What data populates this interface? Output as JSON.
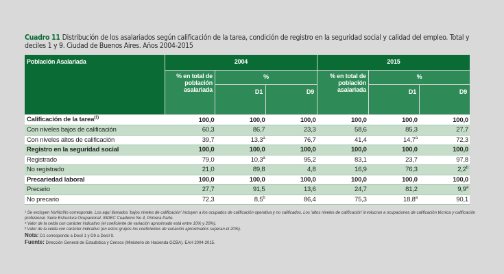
{
  "title": {
    "number": "Cuadro 11",
    "text": "Distribución de los asalariados según calificación de la tarea, condición de registro en la seguridad social y calidad del empleo. Total y deciles 1 y 9. Ciudad de Buenos Aires. Años 2004-2015"
  },
  "header": {
    "row_label": "Población Asalariada",
    "years": [
      "2004",
      "2015"
    ],
    "pct_total": "% en total de población asalariada",
    "pct": "%",
    "d1": "D1",
    "d9": "D9"
  },
  "rows": [
    {
      "label": "Calificación de la tarea",
      "sup": "(1)",
      "bold": true,
      "values": [
        "100,0",
        "100,0",
        "100,0",
        "100,0",
        "100,0",
        "100,0"
      ],
      "sups": [
        "",
        "",
        "",
        "",
        "",
        ""
      ]
    },
    {
      "label": "Con niveles bajos de calificación",
      "bold": false,
      "values": [
        "60,3",
        "86,7",
        "23,3",
        "58,6",
        "85,3",
        "27,7"
      ],
      "sups": [
        "",
        "",
        "",
        "",
        "",
        ""
      ]
    },
    {
      "label": "Con niveles altos de calificación",
      "bold": false,
      "values": [
        "39,7",
        "13,3",
        "76,7",
        "41,4",
        "14,7",
        "72,3"
      ],
      "sups": [
        "",
        "a",
        "",
        "",
        "a",
        ""
      ]
    },
    {
      "label": "Registro en la seguridad social",
      "bold": true,
      "values": [
        "100,0",
        "100,0",
        "100,0",
        "100,0",
        "100,0",
        "100,0"
      ],
      "sups": [
        "",
        "",
        "",
        "",
        "",
        ""
      ]
    },
    {
      "label": "Registrado",
      "bold": false,
      "values": [
        "79,0",
        "10,3",
        "95,2",
        "83,1",
        "23,7",
        "97,8"
      ],
      "sups": [
        "",
        "a",
        "",
        "",
        "",
        ""
      ]
    },
    {
      "label": "No registrado",
      "bold": false,
      "values": [
        "21,0",
        "89,8",
        "4,8",
        "16,9",
        "76,3",
        "2,2"
      ],
      "sups": [
        "",
        "",
        "",
        "",
        "",
        "b"
      ]
    },
    {
      "label": "Precariedad laboral",
      "bold": true,
      "values": [
        "100,0",
        "100,0",
        "100,0",
        "100,0",
        "100,0",
        "100,0"
      ],
      "sups": [
        "",
        "",
        "",
        "",
        "",
        ""
      ]
    },
    {
      "label": "Precario",
      "bold": false,
      "values": [
        "27,7",
        "91,5",
        "13,6",
        "24,7",
        "81,2",
        "9,9"
      ],
      "sups": [
        "",
        "",
        "",
        "",
        "",
        "a"
      ]
    },
    {
      "label": "No precario",
      "bold": false,
      "values": [
        "72,3",
        "8,5",
        "86,4",
        "75,3",
        "18,8",
        "90,1"
      ],
      "sups": [
        "",
        "b",
        "",
        "",
        "a",
        ""
      ]
    }
  ],
  "notes": {
    "n1": "¹ Se excluyen Ns/Nc/No corresponde. Los aquí llamados 'bajos niveles de calificación' incluyen a los ocupados de calificación operativa y no calificados. Los 'altos niveles de calificación' involucran a ocupaciones de calificación técnica y calificación profesional. Serie Estructura Ocupacional. INDEC Cuaderno No 4, Primera Parte.",
    "na": "ᵃ Valor de la celda con carácter indicativo (el coeficiente de variación aproximado está entre 10% y 20%).",
    "nb": "ᵇ Valor de la celda con carácter indicativo (en estos grupos los coeficientes de variación aproximados superan el 20%).",
    "nota_label": "Nota:",
    "nota": "D1 corresponde a Decil 1 y D9 a Decil 9.",
    "fuente_label": "Fuente:",
    "fuente": "Dirección General de Estadística y Censos (Ministerio de Hacienda GCBA). EAH 2004-2015."
  },
  "colors": {
    "header_dark": "#0a6b35",
    "header_light": "#2e8a56",
    "row_alt": "#c5ddc9"
  }
}
